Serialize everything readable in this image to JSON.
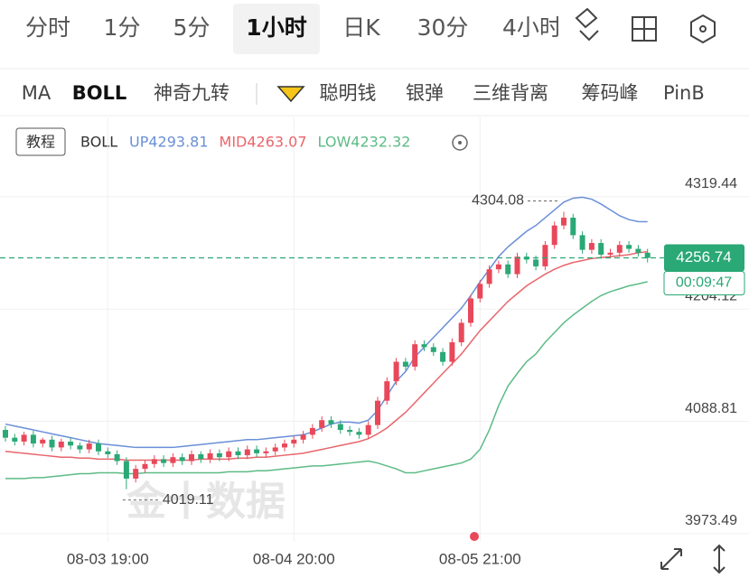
{
  "tabs": [
    "分时",
    "1分",
    "5分",
    "1小时",
    "日K",
    "30分",
    "4小时"
  ],
  "indicators": [
    "MA",
    "BOLL",
    "神奇九转",
    "聪明钱",
    "银弹",
    "三维背离",
    "筹码峰",
    "PinB"
  ],
  "tutorial": "教程",
  "chart_data": {
    "type": "candlestick",
    "indicator": "BOLL",
    "watermark": "金十数据",
    "countdown": "00:09:47",
    "up_color": "#e8485a",
    "down_color": "#2aa876",
    "categories": [
      null,
      null,
      null,
      null,
      null,
      null,
      null,
      null,
      null,
      null,
      null,
      "08-03 19:00",
      null,
      null,
      null,
      null,
      null,
      null,
      null,
      null,
      null,
      null,
      null,
      null,
      null,
      null,
      null,
      null,
      null,
      null,
      null,
      "08-04 20:00",
      null,
      null,
      null,
      null,
      null,
      null,
      null,
      null,
      null,
      null,
      null,
      null,
      null,
      null,
      null,
      null,
      null,
      null,
      null,
      "08-05 21:00",
      null,
      null,
      null,
      null,
      null,
      null,
      null,
      null,
      null,
      null,
      null,
      null,
      null,
      null,
      null,
      null,
      null,
      null
    ],
    "open": [
      4080,
      4072,
      4068,
      4075,
      4066,
      4070,
      4062,
      4068,
      4064,
      4060,
      4066,
      4058,
      4055,
      4048,
      4030,
      4040,
      4045,
      4050,
      4046,
      4052,
      4048,
      4055,
      4050,
      4056,
      4052,
      4058,
      4054,
      4060,
      4056,
      4058,
      4062,
      4066,
      4070,
      4075,
      4082,
      4090,
      4086,
      4080,
      4078,
      4075,
      4085,
      4110,
      4130,
      4150,
      4145,
      4168,
      4165,
      4160,
      4150,
      4170,
      4190,
      4215,
      4230,
      4245,
      4250,
      4240,
      4258,
      4255,
      4248,
      4270,
      4290,
      4298,
      4280,
      4265,
      4272,
      4260,
      4262,
      4270,
      4266,
      4262
    ],
    "high": [
      4084,
      4076,
      4078,
      4079,
      4072,
      4074,
      4071,
      4072,
      4067,
      4070,
      4070,
      4062,
      4059,
      4052,
      4044,
      4049,
      4054,
      4054,
      4056,
      4056,
      4059,
      4058,
      4060,
      4060,
      4062,
      4062,
      4064,
      4064,
      4062,
      4066,
      4070,
      4074,
      4079,
      4086,
      4094,
      4094,
      4090,
      4084,
      4082,
      4089,
      4114,
      4134,
      4154,
      4154,
      4172,
      4172,
      4169,
      4164,
      4174,
      4194,
      4219,
      4234,
      4249,
      4254,
      4254,
      4262,
      4262,
      4259,
      4274,
      4294,
      4304.08,
      4302,
      4284,
      4276,
      4276,
      4266,
      4274,
      4274,
      4270,
      4266
    ],
    "low": [
      4068,
      4064,
      4064,
      4062,
      4062,
      4058,
      4058,
      4060,
      4056,
      4056,
      4054,
      4051,
      4044,
      4019.11,
      4026,
      4036,
      4041,
      4042,
      4042,
      4044,
      4044,
      4046,
      4046,
      4048,
      4048,
      4050,
      4050,
      4052,
      4052,
      4054,
      4058,
      4062,
      4066,
      4071,
      4078,
      4082,
      4076,
      4074,
      4071,
      4071,
      4081,
      4106,
      4126,
      4141,
      4141,
      4161,
      4156,
      4146,
      4146,
      4166,
      4186,
      4211,
      4226,
      4241,
      4236,
      4236,
      4251,
      4244,
      4244,
      4266,
      4286,
      4276,
      4261,
      4261,
      4256,
      4256,
      4258,
      4262,
      4258,
      4252
    ],
    "close": [
      4072,
      4068,
      4075,
      4066,
      4070,
      4062,
      4068,
      4064,
      4060,
      4066,
      4058,
      4055,
      4048,
      4030,
      4040,
      4045,
      4050,
      4046,
      4052,
      4048,
      4055,
      4050,
      4056,
      4052,
      4058,
      4054,
      4060,
      4056,
      4058,
      4062,
      4066,
      4070,
      4075,
      4082,
      4090,
      4086,
      4080,
      4078,
      4075,
      4085,
      4110,
      4130,
      4150,
      4145,
      4168,
      4165,
      4160,
      4150,
      4170,
      4190,
      4215,
      4230,
      4245,
      4250,
      4240,
      4258,
      4255,
      4248,
      4270,
      4290,
      4298,
      4280,
      4265,
      4272,
      4260,
      4262,
      4270,
      4266,
      4262,
      4256.74
    ],
    "bands": [
      {
        "label": "UP4293.81",
        "color": "#6a8fd8",
        "values": [
          4086,
          4084,
          4082,
          4080,
          4078,
          4076,
          4074,
          4072,
          4070,
          4068,
          4066,
          4065,
          4064,
          4063,
          4062,
          4062,
          4062,
          4062,
          4062,
          4063,
          4064,
          4065,
          4066,
          4067,
          4068,
          4069,
          4070,
          4070,
          4071,
          4072,
          4073,
          4074,
          4075,
          4078,
          4082,
          4086,
          4088,
          4088,
          4087,
          4090,
          4100,
          4115,
          4130,
          4140,
          4155,
          4165,
          4175,
          4185,
          4195,
          4205,
          4218,
          4232,
          4245,
          4258,
          4268,
          4276,
          4284,
          4290,
          4298,
          4306,
          4314,
          4318,
          4319,
          4317,
          4312,
          4306,
          4300,
          4296,
          4294,
          4293.81
        ]
      },
      {
        "label": "MID4263.07",
        "color": "#e8666c",
        "values": [
          4058,
          4057,
          4056,
          4055,
          4054,
          4053,
          4052,
          4052,
          4051,
          4051,
          4050,
          4050,
          4050,
          4049,
          4049,
          4049,
          4049,
          4049,
          4049,
          4049,
          4049,
          4050,
          4050,
          4050,
          4050,
          4051,
          4051,
          4052,
          4052,
          4053,
          4054,
          4055,
          4056,
          4058,
          4060,
          4062,
          4064,
          4066,
          4068,
          4071,
          4076,
          4082,
          4090,
          4098,
          4108,
          4118,
          4128,
          4138,
          4148,
          4158,
          4170,
          4182,
          4192,
          4202,
          4212,
          4220,
          4228,
          4234,
          4240,
          4245,
          4249,
          4252,
          4254,
          4256,
          4257,
          4258,
          4259,
          4260,
          4262,
          4263.07
        ]
      },
      {
        "label": "LOW4232.32",
        "color": "#5dbb86",
        "values": [
          4030,
          4030,
          4030,
          4031,
          4031,
          4032,
          4033,
          4034,
          4035,
          4035,
          4036,
          4036,
          4036,
          4035,
          4035,
          4036,
          4036,
          4036,
          4036,
          4036,
          4036,
          4036,
          4036,
          4036,
          4037,
          4037,
          4037,
          4038,
          4038,
          4039,
          4040,
          4041,
          4042,
          4043,
          4043,
          4044,
          4045,
          4046,
          4047,
          4048,
          4046,
          4043,
          4040,
          4036,
          4036,
          4038,
          4040,
          4042,
          4044,
          4046,
          4050,
          4060,
          4080,
          4105,
          4125,
          4138,
          4150,
          4158,
          4170,
          4180,
          4190,
          4198,
          4205,
          4212,
          4218,
          4222,
          4225,
          4228,
          4230,
          4232.32
        ]
      }
    ],
    "ylim": [
      3965,
      4401
    ],
    "yticks": [
      4319.44,
      4204.12,
      4088.81,
      3973.49
    ],
    "grid": true
  }
}
